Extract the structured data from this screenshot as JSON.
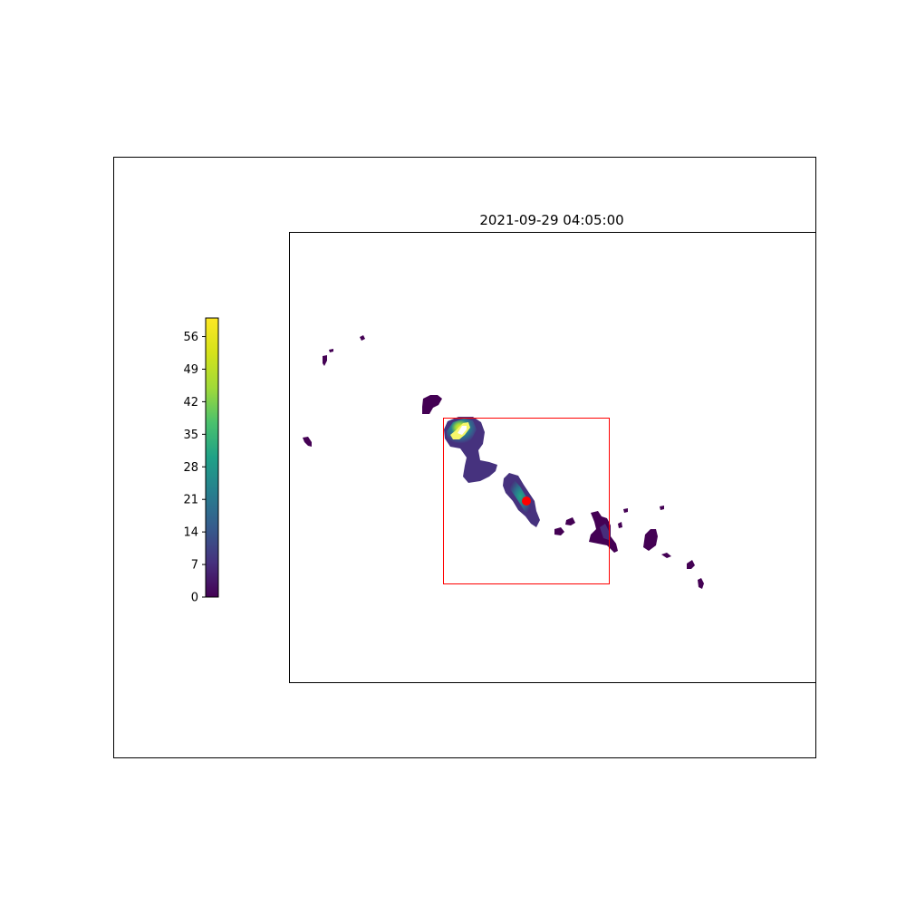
{
  "chart_data": {
    "type": "heatmap",
    "title": "2021-09-29 04:05:00",
    "colormap": "viridis",
    "colorbar": {
      "min": 0,
      "max": 60,
      "ticks": [
        0,
        7,
        14,
        21,
        28,
        35,
        42,
        49,
        56
      ],
      "tick_labels": [
        "0",
        "7",
        "14",
        "21",
        "28",
        "35",
        "42",
        "49",
        "56"
      ]
    },
    "features": {
      "highlight_box_color": "#ff0000",
      "marker_color": "#ff0000",
      "grid": false
    }
  }
}
